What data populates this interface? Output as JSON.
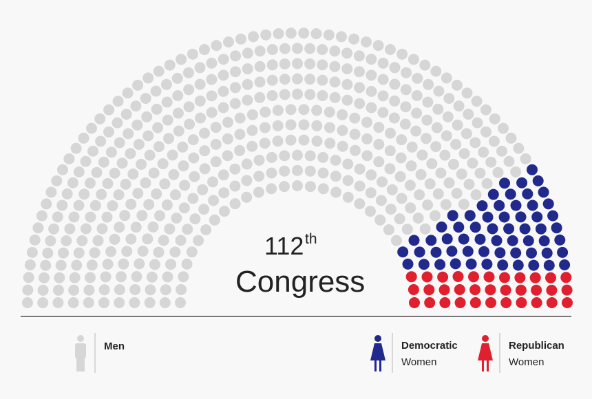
{
  "chart_data": {
    "type": "parliament",
    "title_number": "112",
    "title_suffix": "th",
    "title": "Congress",
    "series": [
      {
        "name": "Men",
        "color": "#d6d6d6",
        "value": 442
      },
      {
        "name": "Democratic",
        "subtitle": "Women",
        "color": "#212a8c",
        "value": 60
      },
      {
        "name": "Republican",
        "subtitle": "Women",
        "color": "#e0202e",
        "value": 33
      }
    ]
  }
}
